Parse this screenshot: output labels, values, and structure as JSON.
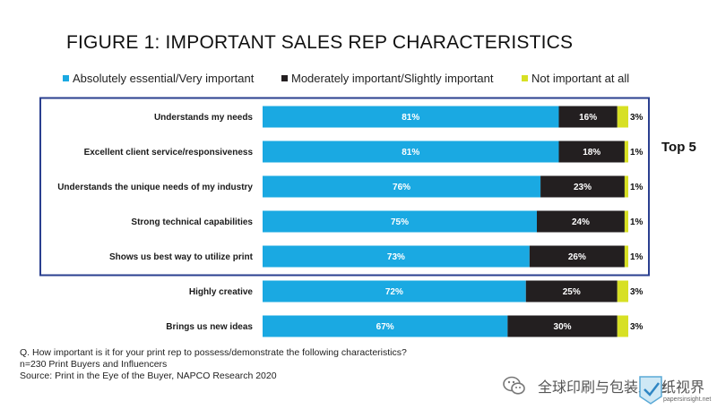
{
  "chart_data": {
    "type": "bar",
    "orientation": "horizontal",
    "stacked": true,
    "title": "FIGURE 1: IMPORTANT SALES REP CHARACTERISTICS",
    "legend_position": "top",
    "categories": [
      "Understands my needs",
      "Excellent client service/responsiveness",
      "Understands the unique needs of my industry",
      "Strong technical capabilities",
      "Shows us best way to utilize print",
      "Highly creative",
      "Brings us new ideas"
    ],
    "series": [
      {
        "name": "Absolutely essential/Very important",
        "color": "#1aa9e2",
        "values": [
          81,
          81,
          76,
          75,
          73,
          72,
          67
        ]
      },
      {
        "name": "Moderately important/Slightly important",
        "color": "#231f20",
        "values": [
          16,
          18,
          23,
          24,
          26,
          25,
          30
        ]
      },
      {
        "name": "Not important at all",
        "color": "#d7e024",
        "values": [
          3,
          1,
          1,
          1,
          1,
          3,
          3
        ]
      }
    ],
    "value_labels": [
      [
        "81%",
        "16%",
        "3%"
      ],
      [
        "81%",
        "18%",
        "1%"
      ],
      [
        "76%",
        "23%",
        "1%"
      ],
      [
        "75%",
        "24%",
        "1%"
      ],
      [
        "73%",
        "26%",
        "1%"
      ],
      [
        "72%",
        "25%",
        "3%"
      ],
      [
        "67%",
        "30%",
        "3%"
      ]
    ],
    "xlim": [
      0,
      100
    ],
    "grid": false,
    "highlight": {
      "label": "Top 5",
      "count": 5,
      "color": "#2a3f8f"
    }
  },
  "footer": {
    "question": "Q. How important is it for your print rep to possess/demonstrate the following characteristics?",
    "sample": "n=230 Print Buyers and Influencers",
    "source": "Source: Print in the Eye of the Buyer, NAPCO Research 2020"
  },
  "watermark": {
    "account": "全球印刷与包装工业",
    "logo_text": "纸视界",
    "url": "papersinsight.net"
  }
}
